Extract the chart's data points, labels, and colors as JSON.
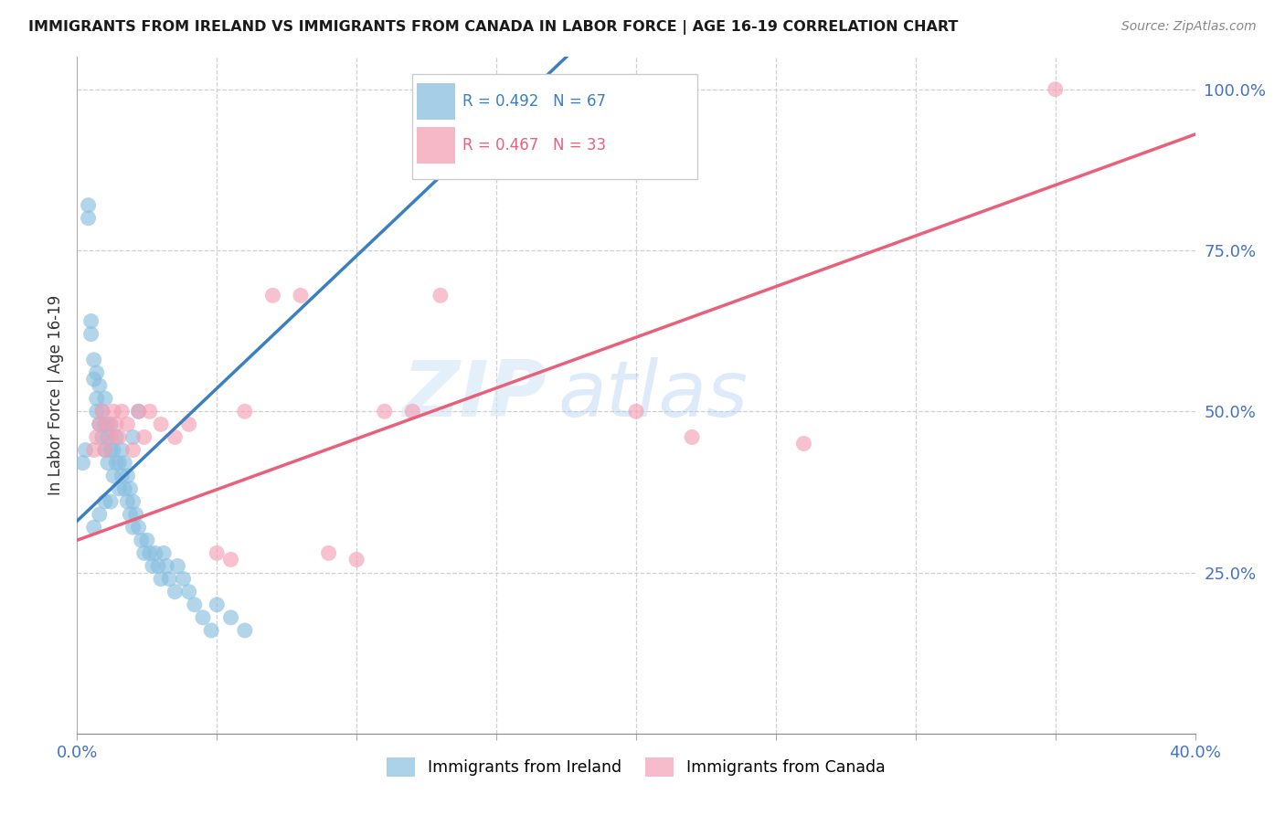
{
  "title": "IMMIGRANTS FROM IRELAND VS IMMIGRANTS FROM CANADA IN LABOR FORCE | AGE 16-19 CORRELATION CHART",
  "source": "Source: ZipAtlas.com",
  "ylabel": "In Labor Force | Age 16-19",
  "xlim": [
    0.0,
    0.4
  ],
  "ylim": [
    0.0,
    1.05
  ],
  "ireland_R": 0.492,
  "ireland_N": 67,
  "canada_R": 0.467,
  "canada_N": 33,
  "ireland_color": "#89bfe0",
  "canada_color": "#f4a0b5",
  "ireland_line_color": "#3a7fc1",
  "canada_line_color": "#e8607a",
  "ireland_line_x0": 0.0,
  "ireland_line_y0": 0.33,
  "ireland_line_x1": 0.175,
  "ireland_line_y1": 1.05,
  "canada_line_x0": 0.0,
  "canada_line_y0": 0.3,
  "canada_line_x1": 0.4,
  "canada_line_y1": 0.93,
  "ireland_x": [
    0.002,
    0.003,
    0.004,
    0.004,
    0.005,
    0.005,
    0.006,
    0.006,
    0.007,
    0.007,
    0.007,
    0.008,
    0.008,
    0.009,
    0.009,
    0.01,
    0.01,
    0.01,
    0.011,
    0.011,
    0.012,
    0.012,
    0.013,
    0.013,
    0.014,
    0.014,
    0.015,
    0.015,
    0.016,
    0.016,
    0.017,
    0.017,
    0.018,
    0.018,
    0.019,
    0.019,
    0.02,
    0.02,
    0.021,
    0.022,
    0.023,
    0.024,
    0.025,
    0.026,
    0.027,
    0.028,
    0.029,
    0.03,
    0.031,
    0.032,
    0.033,
    0.035,
    0.036,
    0.038,
    0.04,
    0.042,
    0.045,
    0.048,
    0.05,
    0.055,
    0.06,
    0.02,
    0.022,
    0.01,
    0.008,
    0.006,
    0.012
  ],
  "ireland_y": [
    0.42,
    0.44,
    0.8,
    0.82,
    0.62,
    0.64,
    0.55,
    0.58,
    0.5,
    0.52,
    0.56,
    0.48,
    0.54,
    0.46,
    0.5,
    0.44,
    0.48,
    0.52,
    0.42,
    0.46,
    0.44,
    0.48,
    0.4,
    0.44,
    0.42,
    0.46,
    0.38,
    0.42,
    0.4,
    0.44,
    0.38,
    0.42,
    0.36,
    0.4,
    0.34,
    0.38,
    0.32,
    0.36,
    0.34,
    0.32,
    0.3,
    0.28,
    0.3,
    0.28,
    0.26,
    0.28,
    0.26,
    0.24,
    0.28,
    0.26,
    0.24,
    0.22,
    0.26,
    0.24,
    0.22,
    0.2,
    0.18,
    0.16,
    0.2,
    0.18,
    0.16,
    0.46,
    0.5,
    0.36,
    0.34,
    0.32,
    0.36
  ],
  "canada_x": [
    0.006,
    0.007,
    0.008,
    0.009,
    0.01,
    0.011,
    0.012,
    0.013,
    0.014,
    0.015,
    0.016,
    0.018,
    0.02,
    0.022,
    0.024,
    0.026,
    0.03,
    0.035,
    0.04,
    0.05,
    0.055,
    0.06,
    0.07,
    0.08,
    0.09,
    0.1,
    0.11,
    0.12,
    0.13,
    0.2,
    0.22,
    0.26,
    0.35
  ],
  "canada_y": [
    0.44,
    0.46,
    0.48,
    0.5,
    0.44,
    0.48,
    0.46,
    0.5,
    0.48,
    0.46,
    0.5,
    0.48,
    0.44,
    0.5,
    0.46,
    0.5,
    0.48,
    0.46,
    0.48,
    0.28,
    0.27,
    0.5,
    0.68,
    0.68,
    0.28,
    0.27,
    0.5,
    0.5,
    0.68,
    0.5,
    0.46,
    0.45,
    1.0
  ],
  "watermark_zip": "ZIP",
  "watermark_atlas": "atlas",
  "background_color": "#ffffff",
  "grid_color": "#d0d0d0"
}
